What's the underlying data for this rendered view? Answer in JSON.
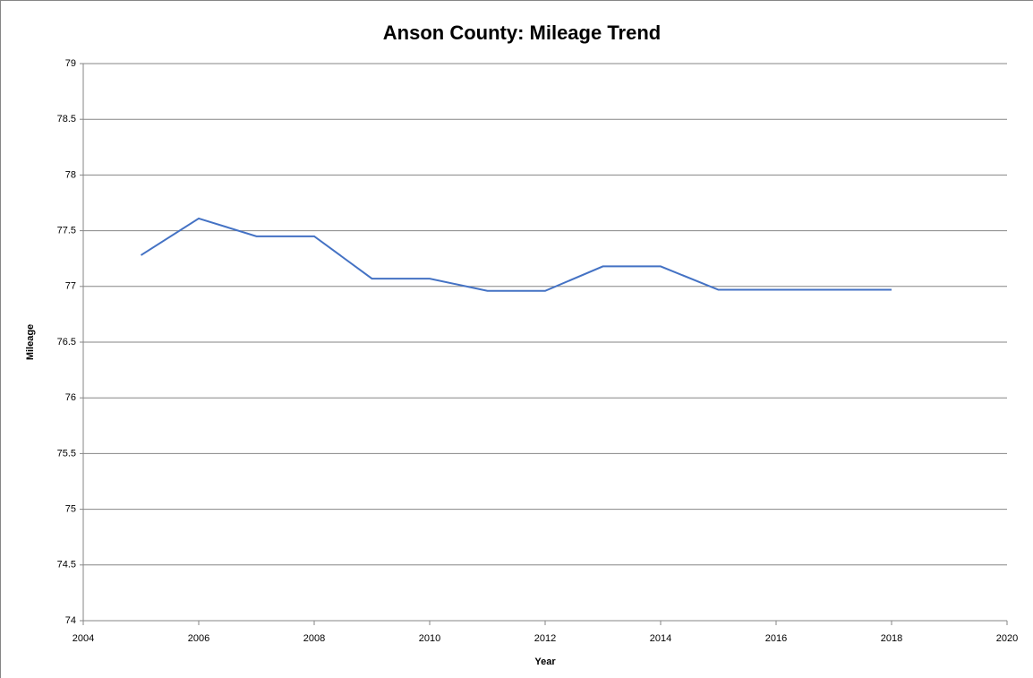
{
  "chart_data": {
    "type": "line",
    "title": "Anson County: Mileage Trend",
    "x_label": "Year",
    "y_label": "Mileage",
    "x": [
      2005,
      2006,
      2007,
      2008,
      2009,
      2010,
      2011,
      2012,
      2013,
      2014,
      2015,
      2016,
      2017,
      2018
    ],
    "series": [
      {
        "name": "Mileage",
        "color": "#4472c4",
        "values": [
          77.28,
          77.61,
          77.45,
          77.45,
          77.07,
          77.07,
          76.96,
          76.96,
          77.18,
          77.18,
          76.97,
          76.97,
          76.97,
          76.97
        ]
      }
    ],
    "xlim": [
      2004,
      2020
    ],
    "xticks": [
      2004,
      2006,
      2008,
      2010,
      2012,
      2014,
      2016,
      2018,
      2020
    ],
    "ylim": [
      74,
      79
    ],
    "yticks": [
      74,
      74.5,
      75,
      75.5,
      76,
      76.5,
      77,
      77.5,
      78,
      78.5,
      79
    ],
    "grid": true,
    "legend": false
  }
}
